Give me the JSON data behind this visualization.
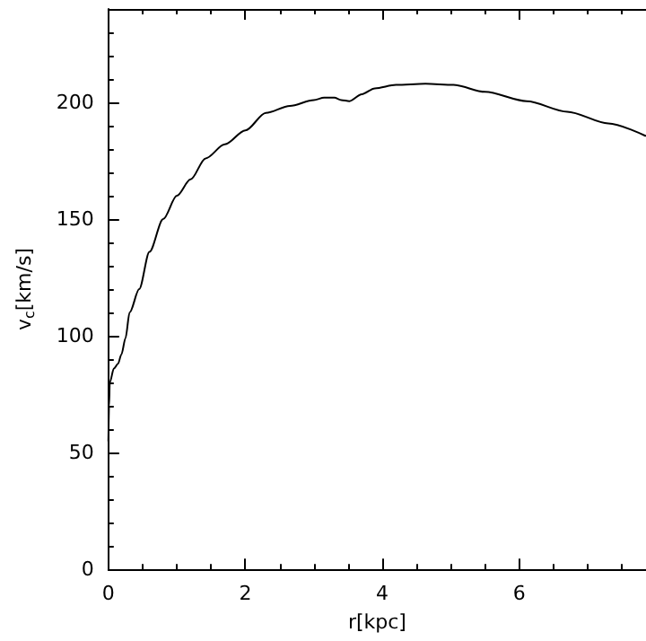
{
  "chart_data": {
    "type": "line",
    "xlabel": "r[kpc]",
    "ylabel": "v$_{c}$[km/s]",
    "xlim": [
      0,
      7.85
    ],
    "xticks": [
      0,
      2,
      4,
      6
    ],
    "ylim": [
      0,
      240
    ],
    "yticks": [
      0,
      50,
      100,
      150,
      200
    ],
    "grid": false,
    "marker": "none",
    "line_style": "solid",
    "series": [
      {
        "color": "#000000",
        "x": [
          0,
          0.01,
          0.02,
          0.08,
          0.14,
          0.19,
          0.25,
          0.31,
          0.45,
          0.6,
          0.8,
          1.0,
          1.2,
          1.42,
          1.7,
          2.0,
          2.3,
          2.65,
          3.0,
          3.15,
          3.3,
          3.4,
          3.52,
          3.7,
          3.89,
          4.2,
          4.63,
          5.04,
          5.5,
          6.11,
          6.7,
          7.3,
          7.84
        ],
        "values": [
          55,
          70,
          80,
          86,
          88,
          92,
          99,
          110,
          120,
          136,
          150,
          160,
          167,
          176,
          182,
          188,
          195.5,
          198.5,
          201,
          202,
          202,
          201,
          200.5,
          203.5,
          206,
          207.5,
          208,
          207.5,
          204.5,
          200.5,
          196,
          191,
          185.7
        ]
      }
    ]
  }
}
